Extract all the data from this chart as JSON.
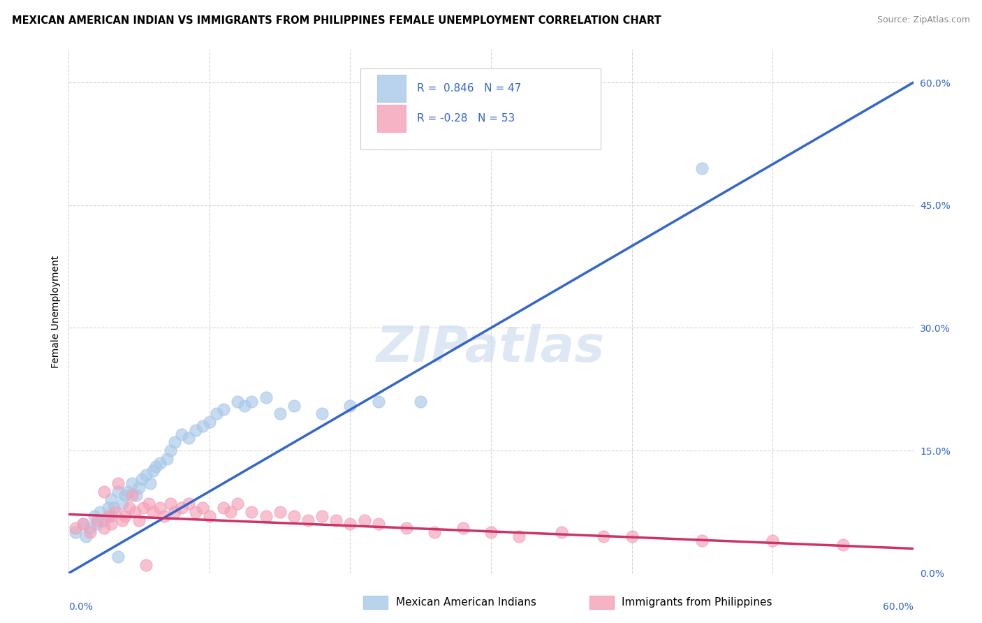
{
  "title": "MEXICAN AMERICAN INDIAN VS IMMIGRANTS FROM PHILIPPINES FEMALE UNEMPLOYMENT CORRELATION CHART",
  "source": "Source: ZipAtlas.com",
  "ylabel": "Female Unemployment",
  "right_yticks": [
    "0.0%",
    "15.0%",
    "30.0%",
    "45.0%",
    "60.0%"
  ],
  "right_ytick_vals": [
    0.0,
    0.15,
    0.3,
    0.45,
    0.6
  ],
  "xmin": 0.0,
  "xmax": 0.6,
  "ymin": 0.0,
  "ymax": 0.64,
  "blue_R": 0.846,
  "blue_N": 47,
  "pink_R": -0.28,
  "pink_N": 53,
  "blue_scatter_color": "#a8c8e8",
  "blue_line_color": "#3366cc",
  "pink_scatter_color": "#f4a0b8",
  "pink_line_color": "#cc3366",
  "legend_label_blue": "Mexican American Indians",
  "legend_label_pink": "Immigrants from Philippines",
  "watermark": "ZIPatlas",
  "blue_scatter_x": [
    0.005,
    0.01,
    0.012,
    0.015,
    0.018,
    0.02,
    0.022,
    0.025,
    0.028,
    0.03,
    0.03,
    0.032,
    0.035,
    0.038,
    0.04,
    0.042,
    0.045,
    0.048,
    0.05,
    0.052,
    0.055,
    0.058,
    0.06,
    0.062,
    0.065,
    0.07,
    0.072,
    0.075,
    0.08,
    0.085,
    0.09,
    0.095,
    0.1,
    0.105,
    0.11,
    0.12,
    0.125,
    0.13,
    0.14,
    0.15,
    0.16,
    0.18,
    0.2,
    0.22,
    0.25,
    0.45,
    0.035
  ],
  "blue_scatter_y": [
    0.05,
    0.06,
    0.045,
    0.055,
    0.07,
    0.06,
    0.075,
    0.065,
    0.08,
    0.07,
    0.09,
    0.08,
    0.1,
    0.085,
    0.095,
    0.1,
    0.11,
    0.095,
    0.105,
    0.115,
    0.12,
    0.11,
    0.125,
    0.13,
    0.135,
    0.14,
    0.15,
    0.16,
    0.17,
    0.165,
    0.175,
    0.18,
    0.185,
    0.195,
    0.2,
    0.21,
    0.205,
    0.21,
    0.215,
    0.195,
    0.205,
    0.195,
    0.205,
    0.21,
    0.21,
    0.495,
    0.02
  ],
  "pink_scatter_x": [
    0.005,
    0.01,
    0.015,
    0.02,
    0.025,
    0.028,
    0.03,
    0.033,
    0.038,
    0.04,
    0.043,
    0.047,
    0.05,
    0.053,
    0.057,
    0.06,
    0.065,
    0.068,
    0.072,
    0.075,
    0.08,
    0.085,
    0.09,
    0.095,
    0.1,
    0.11,
    0.115,
    0.12,
    0.13,
    0.14,
    0.15,
    0.16,
    0.17,
    0.18,
    0.19,
    0.2,
    0.21,
    0.22,
    0.24,
    0.26,
    0.28,
    0.3,
    0.32,
    0.35,
    0.38,
    0.4,
    0.45,
    0.5,
    0.55,
    0.025,
    0.035,
    0.045,
    0.055
  ],
  "pink_scatter_y": [
    0.055,
    0.06,
    0.05,
    0.065,
    0.055,
    0.07,
    0.06,
    0.075,
    0.065,
    0.07,
    0.08,
    0.075,
    0.065,
    0.08,
    0.085,
    0.075,
    0.08,
    0.07,
    0.085,
    0.075,
    0.08,
    0.085,
    0.075,
    0.08,
    0.07,
    0.08,
    0.075,
    0.085,
    0.075,
    0.07,
    0.075,
    0.07,
    0.065,
    0.07,
    0.065,
    0.06,
    0.065,
    0.06,
    0.055,
    0.05,
    0.055,
    0.05,
    0.045,
    0.05,
    0.045,
    0.045,
    0.04,
    0.04,
    0.035,
    0.1,
    0.11,
    0.095,
    0.01
  ],
  "blue_line_x": [
    0.0,
    0.6
  ],
  "blue_line_y": [
    0.0,
    0.6
  ],
  "pink_line_x": [
    0.0,
    0.6
  ],
  "pink_line_y": [
    0.072,
    0.03
  ],
  "grid_color": "#cccccc",
  "background_color": "#ffffff",
  "title_fontsize": 10.5,
  "source_fontsize": 9,
  "axis_label_fontsize": 10,
  "tick_fontsize": 10,
  "legend_fontsize": 11,
  "watermark_fontsize": 52,
  "watermark_color": "#c8d8ee",
  "watermark_alpha": 0.6
}
